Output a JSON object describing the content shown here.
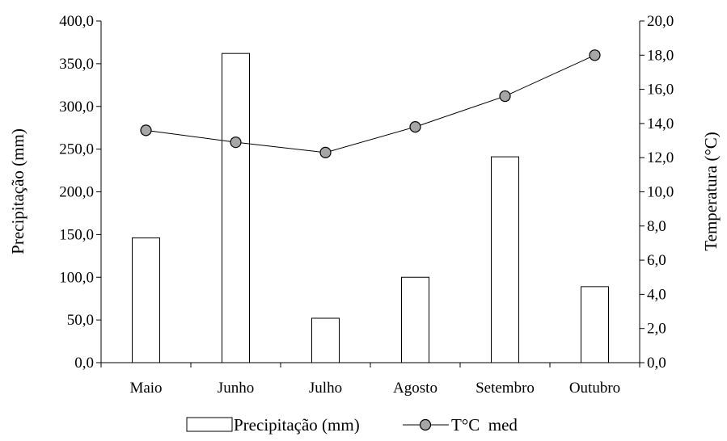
{
  "chart_data": {
    "type": "bar",
    "categories": [
      "Maio",
      "Junho",
      "Julho",
      "Agosto",
      "Setembro",
      "Outubro"
    ],
    "series": [
      {
        "name": "Precipitação (mm)",
        "type": "bar",
        "axis": "left",
        "values": [
          146.0,
          362.0,
          52.0,
          100.0,
          241.0,
          89.0
        ],
        "fill": "#ffffff",
        "stroke": "#000000"
      },
      {
        "name": "T°C  med",
        "type": "line",
        "axis": "right",
        "values": [
          13.6,
          12.9,
          12.3,
          13.8,
          15.6,
          18.0
        ],
        "marker_color": "#a6a6a6",
        "line_color": "#000000"
      }
    ],
    "ylabel": "Precipitação (mm)",
    "y2label": "Temperatura (°C)",
    "xlabel": "",
    "title": "",
    "ylim": [
      0,
      400
    ],
    "y2lim": [
      0,
      20
    ],
    "yticks": [
      "0,0",
      "50,0",
      "100,0",
      "150,0",
      "200,0",
      "250,0",
      "300,0",
      "350,0",
      "400,0"
    ],
    "y2ticks": [
      "0,0",
      "2,0",
      "4,0",
      "6,0",
      "8,0",
      "10,0",
      "12,0",
      "14,0",
      "16,0",
      "18,0",
      "20,0"
    ],
    "grid": false,
    "legend_position": "bottom"
  }
}
